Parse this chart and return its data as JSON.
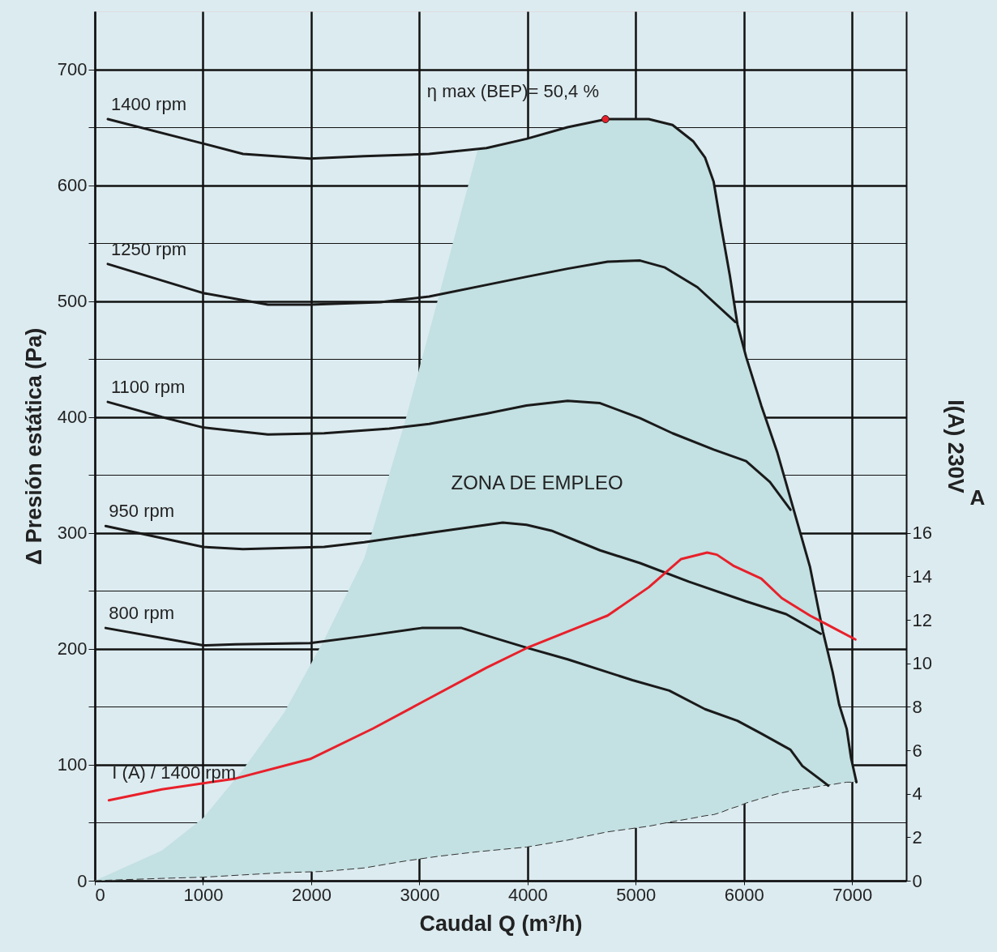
{
  "chart_data": {
    "type": "line",
    "xlabel": "Caudal Q (m³/h)",
    "ylabel": "Δ Presión estática (Pa)",
    "y2label": "I(A) 230V",
    "xlim": [
      0,
      7500
    ],
    "xticks": [
      0,
      1000,
      2000,
      3000,
      4000,
      5000,
      6000,
      7000
    ],
    "ylim": [
      0,
      750
    ],
    "yticks": [
      0,
      {
        "value": 50,
        "label": null
      },
      100,
      {
        "value": 150,
        "label": null
      },
      200,
      {
        "value": 250,
        "label": null
      },
      300,
      {
        "value": 350,
        "label": null
      },
      400,
      {
        "value": 450,
        "label": null
      },
      500,
      {
        "value": 550,
        "label": null
      },
      600,
      {
        "value": 650,
        "label": null
      },
      700
    ],
    "y2lim": [
      0,
      40
    ],
    "y2ticks": [
      0,
      2,
      4,
      6,
      8,
      10,
      12,
      14,
      16
    ],
    "grid": true,
    "series": [
      {
        "type": "line",
        "line_style": "dashed",
        "color": "#333333",
        "x": [
          0,
          620,
          1000,
          1370,
          1750,
          2120,
          2490,
          2870,
          3170,
          3540,
          3990,
          4370,
          4730,
          5120,
          5340,
          5530,
          5640,
          5720,
          5790,
          5870,
          5940,
          6020,
          6160,
          6310,
          6460,
          6610,
          6730,
          6820,
          6880,
          6950,
          6990,
          7040
        ],
        "values": [
          0,
          2,
          3,
          5,
          7,
          8,
          11,
          17,
          21,
          25,
          29,
          35,
          42,
          47,
          51,
          54,
          56,
          57,
          59,
          62,
          64,
          67,
          71,
          75,
          78,
          80,
          82,
          83,
          84,
          85,
          85,
          86
        ],
        "lower": [
          0,
          2,
          3,
          5,
          7,
          8,
          11,
          17,
          21,
          25,
          29,
          35,
          42,
          47,
          51,
          54,
          56,
          57,
          59,
          62,
          64,
          67,
          71,
          75,
          78,
          80,
          82,
          83,
          84,
          85,
          85,
          86
        ],
        "upper": [
          0,
          26,
          54,
          96,
          145,
          208,
          278,
          397,
          501,
          631,
          640,
          650,
          657,
          657,
          652,
          638,
          624,
          603,
          564,
          522,
          480,
          452,
          410,
          369,
          320,
          271,
          215,
          180,
          152,
          131,
          106,
          86
        ]
      },
      {
        "name": "1400 rpm",
        "color": "#1a1a1a",
        "x": [
          120,
          1000,
          1370,
          1990,
          2490,
          3090,
          3620,
          3990,
          4370,
          4730,
          5120,
          5340,
          5530,
          5640,
          5720,
          5790,
          5870,
          5940,
          6020,
          6160,
          6310,
          6460,
          6610,
          6730,
          6820,
          6880,
          6950,
          6990,
          7040
        ],
        "values": [
          657,
          636,
          627,
          623,
          625,
          627,
          632,
          640,
          650,
          657,
          657,
          652,
          638,
          624,
          603,
          564,
          522,
          480,
          452,
          410,
          369,
          320,
          271,
          215,
          180,
          152,
          131,
          106,
          85
        ]
      },
      {
        "name": "1250 rpm",
        "color": "#1a1a1a",
        "x": [
          120,
          1000,
          1600,
          1990,
          2640,
          3090,
          3620,
          3990,
          4370,
          4740,
          5040,
          5270,
          5570,
          5920
        ],
        "values": [
          532,
          507,
          497,
          497,
          499,
          504,
          514,
          521,
          528,
          534,
          535,
          529,
          512,
          482
        ]
      },
      {
        "name": "1100 rpm",
        "color": "#1a1a1a",
        "x": [
          120,
          620,
          1000,
          1600,
          2120,
          2720,
          3090,
          3620,
          3990,
          4370,
          4670,
          5040,
          5340,
          5720,
          6020,
          6240,
          6430
        ],
        "values": [
          413,
          400,
          391,
          385,
          386,
          390,
          394,
          403,
          410,
          414,
          412,
          399,
          386,
          372,
          362,
          344,
          320
        ]
      },
      {
        "name": "950 rpm",
        "color": "#1a1a1a",
        "x": [
          100,
          1000,
          1370,
          2120,
          2490,
          3090,
          3770,
          3990,
          4220,
          4670,
          5040,
          5490,
          6020,
          6390,
          6710
        ],
        "values": [
          306,
          288,
          286,
          288,
          292,
          300,
          309,
          307,
          302,
          285,
          274,
          258,
          241,
          230,
          213
        ]
      },
      {
        "name": "800 rpm",
        "color": "#1a1a1a",
        "x": [
          100,
          1000,
          1300,
          1990,
          2490,
          3020,
          3390,
          3990,
          4370,
          4970,
          5310,
          5640,
          5940,
          6160,
          6430,
          6540,
          6780
        ],
        "values": [
          218,
          203,
          204,
          205,
          211,
          218,
          218,
          201,
          191,
          173,
          164,
          148,
          138,
          127,
          113,
          99,
          82
        ]
      },
      {
        "name": "I (A) / 1400 rpm",
        "color": "#e8202a",
        "axis": "y2",
        "x": [
          130,
          620,
          1300,
          1990,
          2570,
          3020,
          3620,
          3990,
          4740,
          5120,
          5420,
          5660,
          5750,
          5900,
          6160,
          6350,
          6610,
          6840,
          7030
        ],
        "values": [
          3.7,
          4.2,
          4.7,
          5.6,
          7.0,
          8.2,
          9.8,
          10.7,
          12.2,
          13.5,
          14.8,
          15.1,
          15.0,
          14.5,
          13.9,
          13.0,
          12.2,
          11.6,
          11.1
        ]
      },
      {
        "type": "scatter",
        "color": "#e8202a",
        "x": [
          4720
        ],
        "values": [
          657
        ]
      }
    ],
    "annotations": [
      {
        "text": "η max (BEP)= 50,4 %",
        "x": 4720,
        "y": 657
      },
      "ZONA DE EMPLEO",
      "A"
    ]
  }
}
